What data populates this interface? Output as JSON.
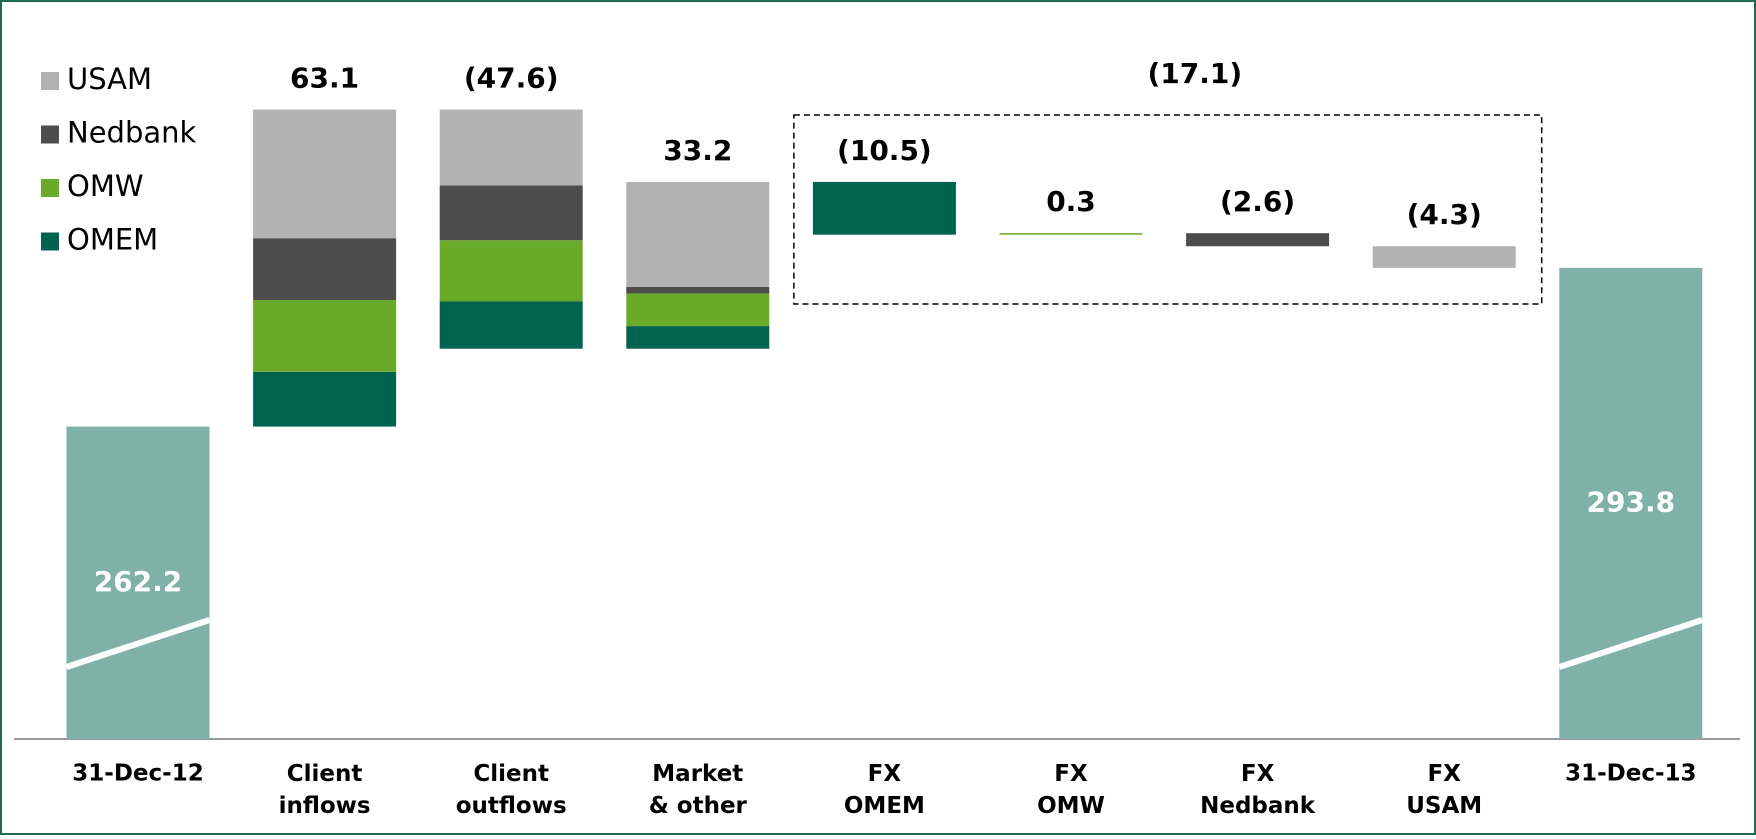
{
  "chart_data": {
    "type": "waterfall",
    "categories": [
      "31-Dec-12",
      "Client inflows",
      "Client outflows",
      "Market & other",
      "FX OMEM",
      "FX OMW",
      "FX Nedbank",
      "FX USAM",
      "31-Dec-13"
    ],
    "values": [
      262.2,
      63.1,
      -47.6,
      33.2,
      null,
      null,
      null,
      null,
      293.8
    ],
    "value_labels": [
      "262.2",
      "63.1",
      "(47.6)",
      "33.2",
      null,
      null,
      null,
      null,
      "293.8"
    ],
    "total_color": "#7fb1a8",
    "series": [
      {
        "name": "USAM",
        "color": "#b2b2b2",
        "values": [
          null,
          25.6,
          -15.1,
          20.9,
          null,
          null,
          null,
          -4.3,
          null
        ],
        "value_labels": [
          null,
          null,
          null,
          null,
          null,
          null,
          null,
          "(4.3)",
          null
        ]
      },
      {
        "name": "Nedbank",
        "color": "#4d4d4d",
        "values": [
          null,
          12.3,
          -10.9,
          1.3,
          null,
          null,
          -2.6,
          null,
          null
        ],
        "value_labels": [
          null,
          null,
          null,
          null,
          null,
          null,
          "(2.6)",
          null,
          null
        ]
      },
      {
        "name": "OMW",
        "color": "#6aaa2a",
        "values": [
          null,
          14.3,
          -12.2,
          6.5,
          null,
          0.3,
          null,
          null,
          null
        ],
        "value_labels": [
          null,
          null,
          null,
          null,
          null,
          "0.3",
          null,
          null,
          null
        ]
      },
      {
        "name": "OMEM",
        "color": "#00634f",
        "values": [
          null,
          10.9,
          -9.4,
          4.5,
          -10.5,
          null,
          null,
          null,
          null
        ],
        "value_labels": [
          null,
          null,
          null,
          null,
          "(10.5)",
          null,
          null,
          null,
          null
        ]
      }
    ],
    "group": {
      "value": -17.1,
      "label": "(17.1)"
    },
    "ylim": [
      200,
      330
    ],
    "legend": "top-left"
  }
}
